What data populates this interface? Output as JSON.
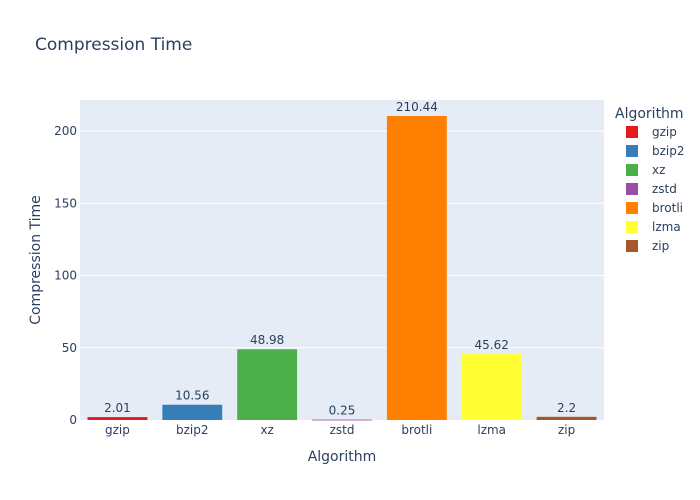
{
  "chart_data": {
    "type": "bar",
    "title": "Compression Time",
    "xlabel": "Algorithm",
    "ylabel": "Compression Time",
    "categories": [
      "gzip",
      "bzip2",
      "xz",
      "zstd",
      "brotli",
      "lzma",
      "zip"
    ],
    "values": [
      2.01,
      10.56,
      48.98,
      0.25,
      210.44,
      45.62,
      2.2
    ],
    "labels": [
      "2.01",
      "10.56",
      "48.98",
      "0.25",
      "210.44",
      "45.62",
      "2.2"
    ],
    "colors": [
      "#e41a1c",
      "#377eb8",
      "#4daf4a",
      "#984ea3",
      "#ff7f00",
      "#ffff33",
      "#a65628"
    ],
    "ylim": [
      0,
      221.5
    ],
    "yticks": [
      0,
      50,
      100,
      150,
      200
    ],
    "grid": true,
    "legend": {
      "title": "Algorithm",
      "placement": "right",
      "entries": [
        "gzip",
        "bzip2",
        "xz",
        "zstd",
        "brotli",
        "lzma",
        "zip"
      ]
    }
  }
}
